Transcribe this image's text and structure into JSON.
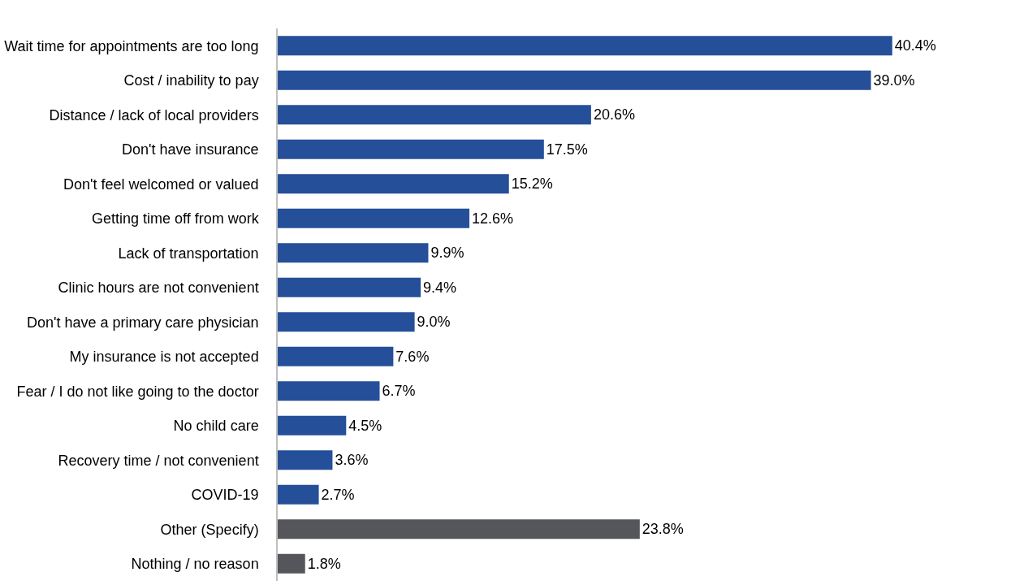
{
  "chart_data": {
    "type": "bar",
    "orientation": "horizontal",
    "categories": [
      "Wait time for appointments are too long",
      "Cost / inability to pay",
      "Distance / lack of local providers",
      "Don't have insurance",
      "Don't feel welcomed or valued",
      "Getting time off from work",
      "Lack of transportation",
      "Clinic hours are not convenient",
      "Don't have a primary care physician",
      "My insurance is not accepted",
      "Fear / I do not like going to the doctor",
      "No child care",
      "Recovery time / not convenient",
      "COVID-19",
      "Other (Specify)",
      "Nothing / no reason"
    ],
    "values": [
      40.4,
      39.0,
      20.6,
      17.5,
      15.2,
      12.6,
      9.9,
      9.4,
      9.0,
      7.6,
      6.7,
      4.5,
      3.6,
      2.7,
      23.8,
      1.8
    ],
    "value_labels": [
      "40.4%",
      "39.0%",
      "20.6%",
      "17.5%",
      "15.2%",
      "12.6%",
      "9.9%",
      "9.4%",
      "9.0%",
      "7.6%",
      "6.7%",
      "4.5%",
      "3.6%",
      "2.7%",
      "23.8%",
      "1.8%"
    ],
    "colors": [
      "#264f99",
      "#264f99",
      "#264f99",
      "#264f99",
      "#264f99",
      "#264f99",
      "#264f99",
      "#264f99",
      "#264f99",
      "#264f99",
      "#264f99",
      "#264f99",
      "#264f99",
      "#264f99",
      "#55565b",
      "#55565b"
    ],
    "grid": false,
    "legend": false,
    "tick_labels": "y"
  }
}
